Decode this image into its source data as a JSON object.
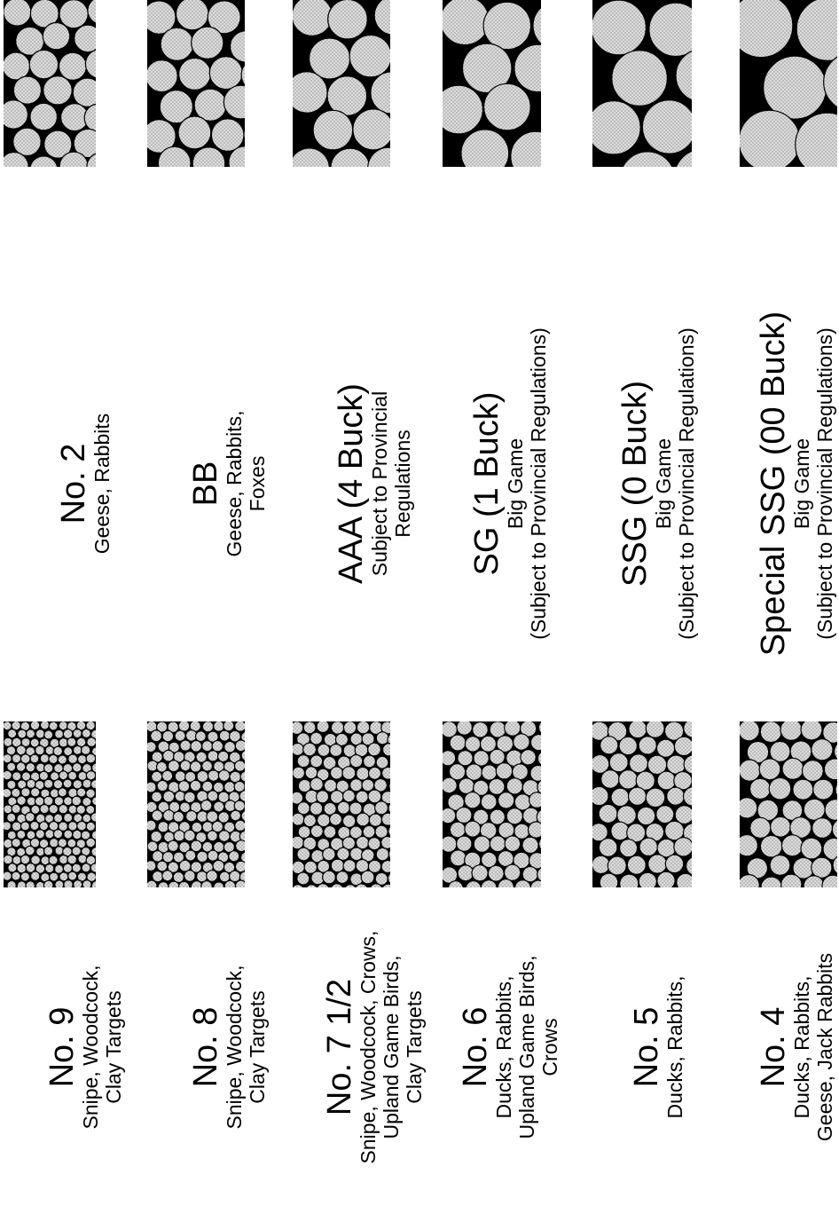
{
  "colors": {
    "background": "#ffffff",
    "swatch_fill": "#000000",
    "pellet_fill": "#dcdcdc",
    "pellet_dot": "#8a8a8a",
    "text": "#000000"
  },
  "shot_sizes": [
    {
      "name": "No. 9",
      "uses": [
        "Snipe, Woodcock,",
        "Clay Targets"
      ],
      "pellet_scale": 1
    },
    {
      "name": "No. 8",
      "uses": [
        "Snipe, Woodcock,",
        "Clay Targets"
      ],
      "pellet_scale": 2
    },
    {
      "name": "No. 7 1/2",
      "uses": [
        "Snipe, Woodcock, Crows,",
        "Upland Game Birds,",
        "Clay Targets"
      ],
      "pellet_scale": 3
    },
    {
      "name": "No. 6",
      "uses": [
        "Ducks, Rabbits,",
        "Upland Game Birds,",
        "Crows"
      ],
      "pellet_scale": 4
    },
    {
      "name": "No. 5",
      "uses": [
        "Ducks, Rabbits,"
      ],
      "pellet_scale": 5
    },
    {
      "name": "No. 4",
      "uses": [
        "Ducks, Rabbits,",
        "Geese, Jack Rabbits"
      ],
      "pellet_scale": 6
    },
    {
      "name": "No. 2",
      "uses": [
        "Geese, Rabbits"
      ],
      "pellet_scale": 7
    },
    {
      "name": "BB",
      "uses": [
        "Geese, Rabbits,",
        "Foxes"
      ],
      "pellet_scale": 8
    },
    {
      "name": "AAA (4 Buck)",
      "uses": [
        "Subject to Provincial",
        "Regulations"
      ],
      "pellet_scale": 9
    },
    {
      "name": "SG (1 Buck)",
      "uses": [
        "Big Game",
        "(Subject to Provincial Regulations)"
      ],
      "pellet_scale": 10
    },
    {
      "name": "SSG (0 Buck)",
      "uses": [
        "Big Game",
        "(Subject to Provincial Regulations)"
      ],
      "pellet_scale": 11
    },
    {
      "name": "Special SSG (00 Buck)",
      "uses": [
        "Big Game",
        "(Subject to Provincial Regulations)"
      ],
      "pellet_scale": 12
    }
  ]
}
